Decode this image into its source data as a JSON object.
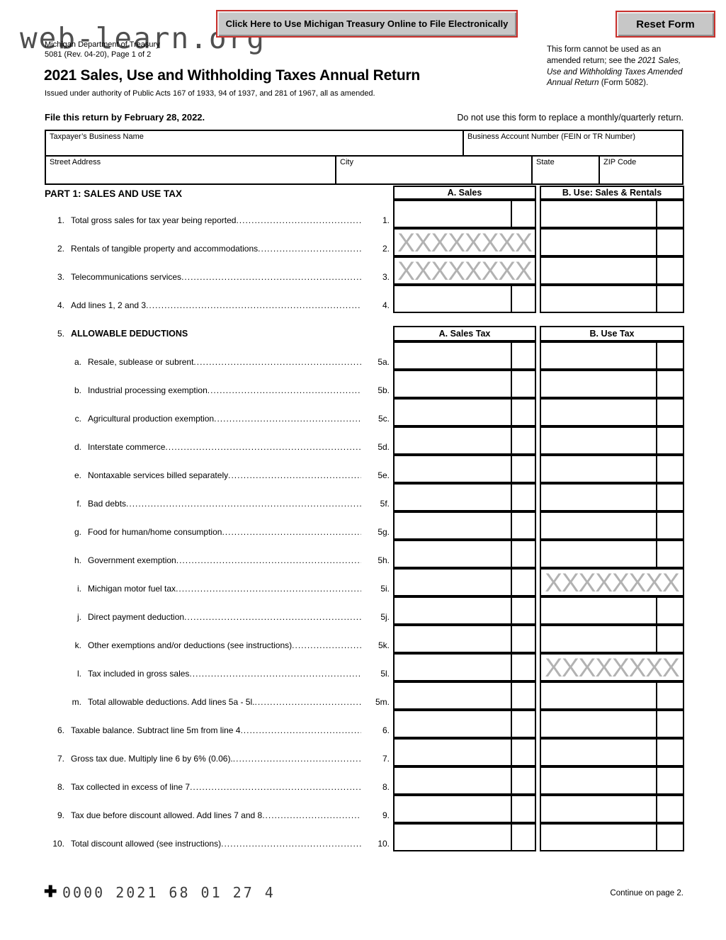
{
  "watermark": "web-learn.org",
  "header": {
    "efile_button": "Click Here to Use Michigan Treasury Online to File Electronically",
    "reset_button": "Reset Form",
    "dept_line1": "Michigan Department of Treasury",
    "dept_line2": "5081 (Rev. 04-20), Page 1 of 2",
    "title": "2021 Sales, Use and Withholding Taxes Annual Return",
    "subtitle": "Issued under authority of Public Acts 167 of 1933, 94 of 1937, and 281 of 1967, all as amended.",
    "amended_note_plain1": "This form cannot be used as an amended return; see the ",
    "amended_note_italic": "2021 Sales, Use and Withholding Taxes Amended Annual Return",
    "amended_note_plain2": " (Form 5082)."
  },
  "deadline": {
    "file_by": "File this return by February 28, 2022.",
    "do_not_use": "Do not use this form to replace a monthly/quarterly return."
  },
  "taxpayer_fields": {
    "business_name": "Taxpayer’s Business Name",
    "account_number": "Business Account Number (FEIN or TR Number)",
    "street": "Street Address",
    "city": "City",
    "state": "State",
    "zip": "ZIP Code"
  },
  "part1": {
    "title": "PART 1: SALES AND USE TAX",
    "sales_header_a": "A. Sales",
    "sales_header_b": "B. Use: Sales & Rentals",
    "x_pattern": "XXXXXXXX",
    "lines": [
      {
        "num": "1.",
        "label": "Total gross sales for tax year being reported",
        "ref": "1.",
        "xa": false,
        "xb": false
      },
      {
        "num": "2.",
        "label": "Rentals of tangible property and accommodations ",
        "ref": "2.",
        "xa": true,
        "xb": false
      },
      {
        "num": "3.",
        "label": "Telecommunications services",
        "ref": "3.",
        "xa": true,
        "xb": false
      },
      {
        "num": "4.",
        "label": "Add lines 1, 2 and 3",
        "ref": "4.",
        "xa": false,
        "xb": false
      }
    ],
    "deductions_num": "5.",
    "deductions_title": "ALLOWABLE DEDUCTIONS",
    "ded_header_a": "A. Sales Tax",
    "ded_header_b": "B. Use Tax",
    "ded_lines": [
      {
        "num": "a.",
        "label": "Resale, sublease or subrent",
        "ref": "5a.",
        "xa": false,
        "xb": false
      },
      {
        "num": "b.",
        "label": "Industrial processing exemption",
        "ref": "5b.",
        "xa": false,
        "xb": false
      },
      {
        "num": "c.",
        "label": "Agricultural production exemption ",
        "ref": "5c.",
        "xa": false,
        "xb": false
      },
      {
        "num": "d.",
        "label": "Interstate commerce",
        "ref": "5d.",
        "xa": false,
        "xb": false
      },
      {
        "num": "e.",
        "label": "Nontaxable services billed separately ",
        "ref": "5e.",
        "xa": false,
        "xb": false
      },
      {
        "num": "f.",
        "label": "Bad debts ",
        "ref": "5f.",
        "xa": false,
        "xb": false
      },
      {
        "num": "g.",
        "label": "Food for human/home consumption",
        "ref": "5g.",
        "xa": false,
        "xb": false
      },
      {
        "num": "h.",
        "label": "Government exemption ",
        "ref": "5h.",
        "xa": false,
        "xb": false
      },
      {
        "num": "i.",
        "label": "Michigan motor fuel tax ",
        "ref": "5i.",
        "xa": false,
        "xb": true
      },
      {
        "num": "j.",
        "label": "Direct payment deduction",
        "ref": "5j.",
        "xa": false,
        "xb": false
      },
      {
        "num": "k.",
        "label": "Other exemptions and/or deductions (see instructions) ",
        "ref": "5k.",
        "xa": false,
        "xb": false
      },
      {
        "num": "l.",
        "label": "Tax included in gross sales",
        "ref": "5l.",
        "xa": false,
        "xb": true
      },
      {
        "num": "m.",
        "label": "Total allowable deductions. Add lines 5a - 5l.",
        "ref": "5m.",
        "xa": false,
        "xb": false
      },
      {
        "num": "6.",
        "label": "Taxable balance. Subtract line 5m from line 4",
        "ref": "6.",
        "xa": false,
        "xb": false
      },
      {
        "num": "7.",
        "label": "Gross tax due. Multiply line 6 by 6% (0.06).",
        "ref": "7.",
        "xa": false,
        "xb": false
      },
      {
        "num": "8.",
        "label": "Tax collected in excess of line 7 ",
        "ref": "8.",
        "xa": false,
        "xb": false
      },
      {
        "num": "9.",
        "label": "Tax due before discount allowed. Add lines 7 and 8",
        "ref": "9.",
        "xa": false,
        "xb": false
      },
      {
        "num": "10.",
        "label": "Total discount allowed (see instructions)",
        "ref": "10.",
        "xa": false,
        "xb": false
      }
    ]
  },
  "footer": {
    "plus_mark": "✚",
    "code": "0000 2021 68 01 27 4",
    "continue_note": "Continue on page 2."
  }
}
